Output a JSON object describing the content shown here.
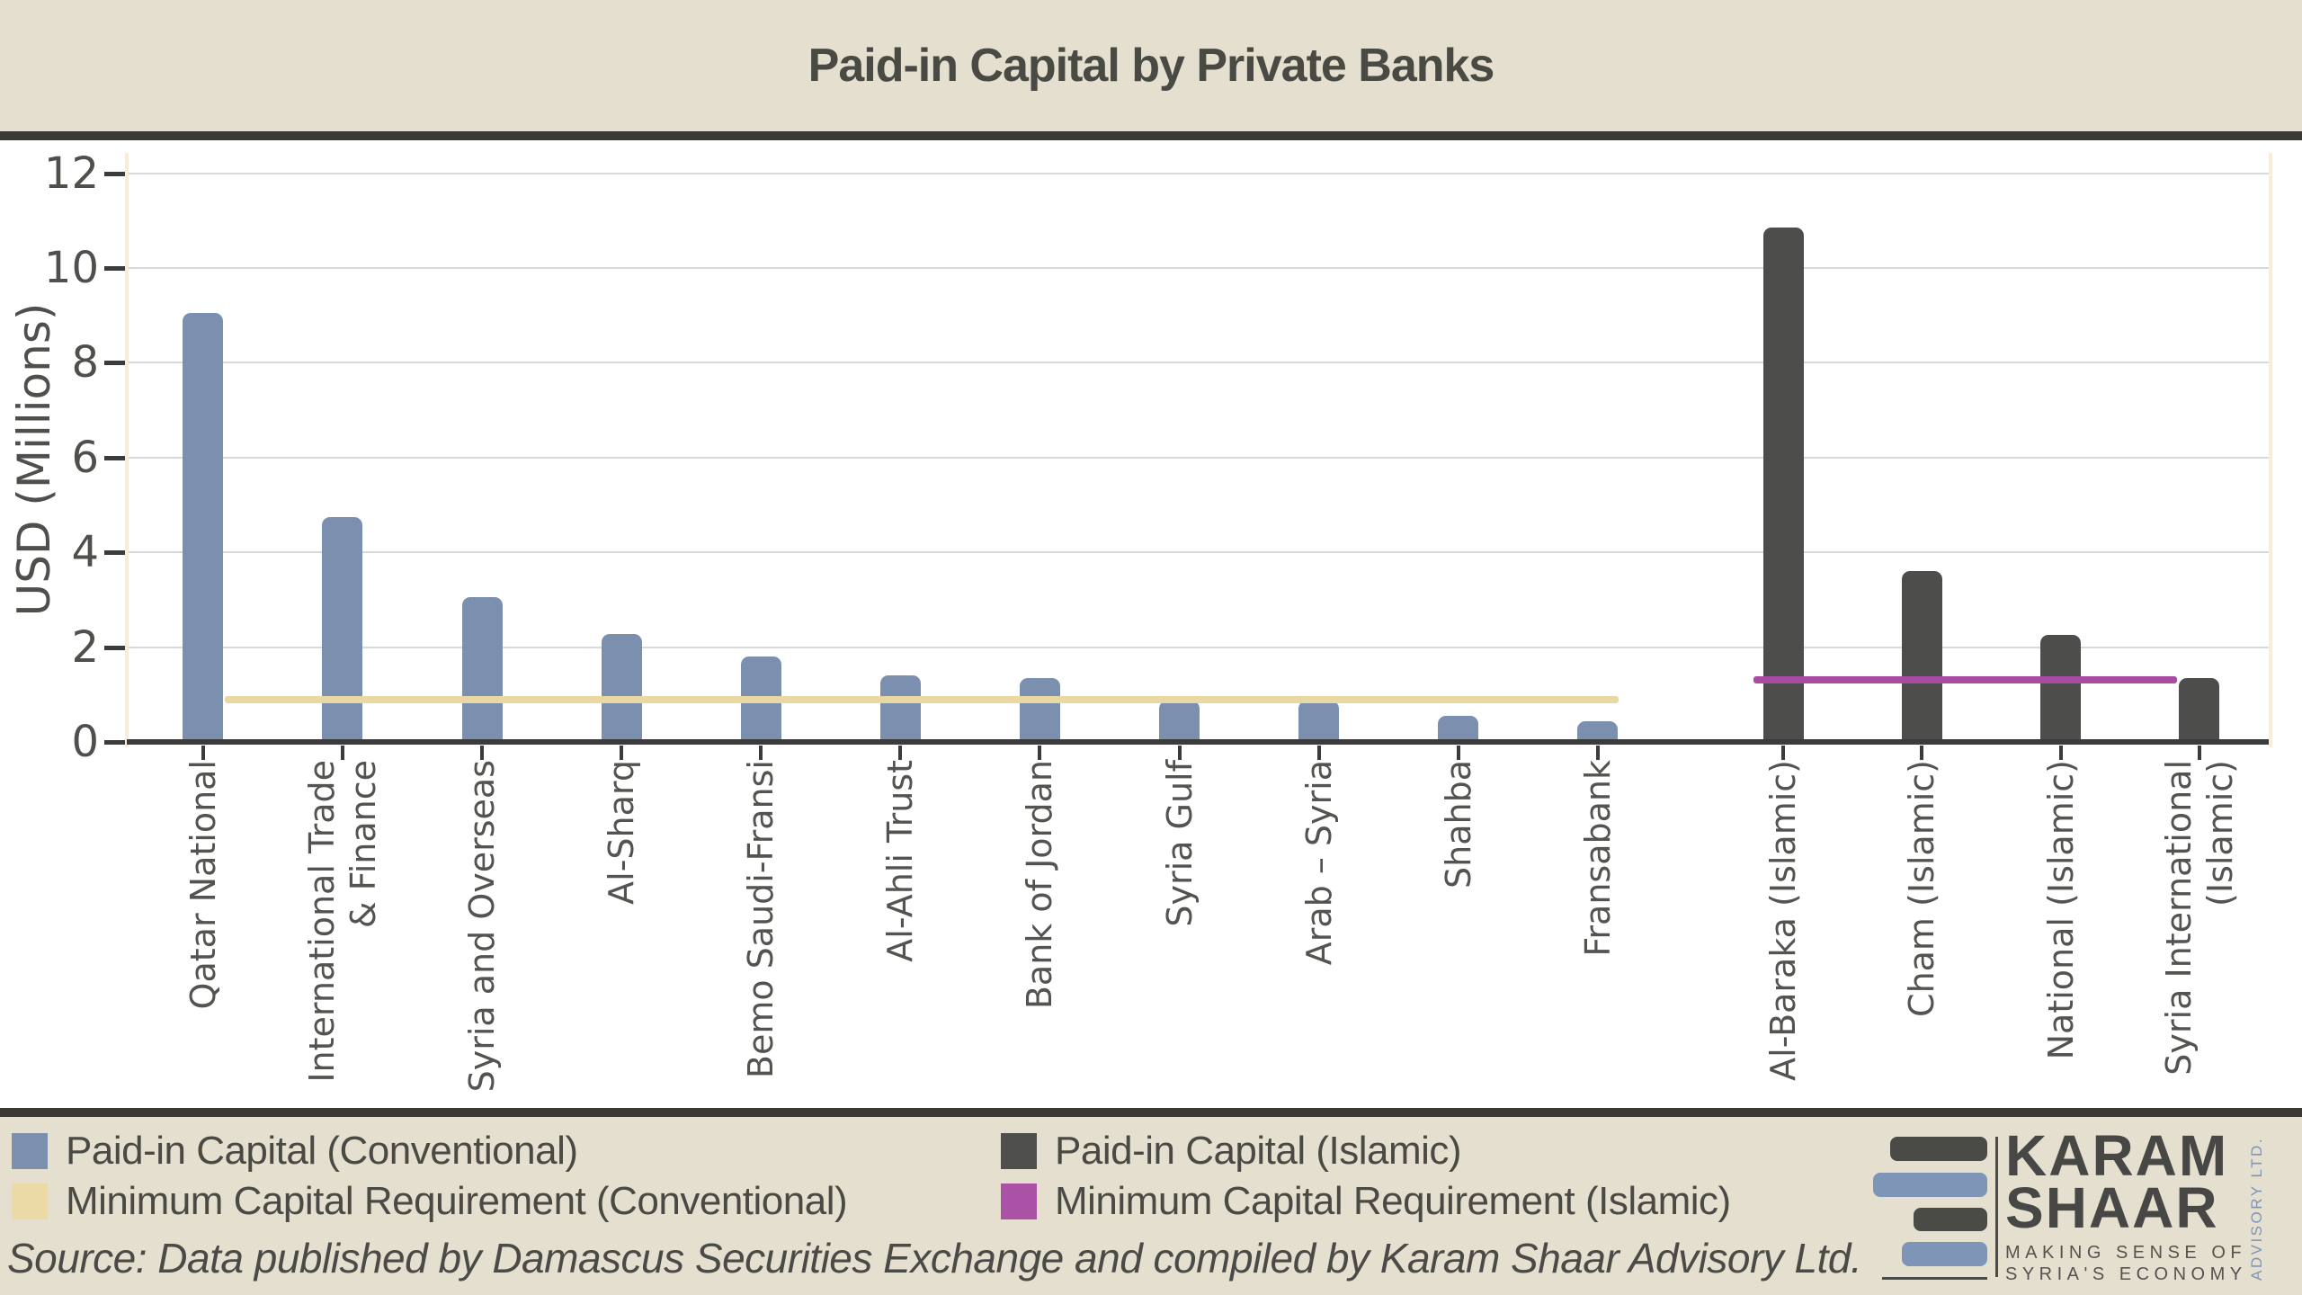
{
  "title": "Paid-in Capital by Private Banks",
  "chart_data": {
    "type": "bar",
    "title": "Paid-in Capital by Private Banks",
    "xlabel": "",
    "ylabel": "USD (Millions)",
    "ylim": [
      0,
      12
    ],
    "yticks": [
      "0",
      "2",
      "4",
      "6",
      "8",
      "10",
      "12"
    ],
    "grid": true,
    "legend_position": "bottom",
    "categories": [
      "Qatar National",
      "International Trade\n& Finance",
      "Syria and Overseas",
      "Al-Sharq",
      "Bemo Saudi-Fransi",
      "Al-Ahli Trust",
      "Bank of Jordan",
      "Syria Gulf",
      "Arab – Syria",
      "Shahba",
      "Fransabank",
      "Al-Baraka (Islamic)",
      "Cham (Islamic)",
      "National (Islamic)",
      "Syria International\n(Islamic)"
    ],
    "series": [
      {
        "name": "Paid-in Capital (Conventional)",
        "color": "#7b90af",
        "values": [
          9.05,
          4.75,
          3.05,
          2.27,
          1.8,
          1.4,
          1.34,
          0.87,
          0.87,
          0.55,
          0.43,
          null,
          null,
          null,
          null
        ]
      },
      {
        "name": "Paid-in Capital (Islamic)",
        "color": "#4d4d4b",
        "values": [
          null,
          null,
          null,
          null,
          null,
          null,
          null,
          null,
          null,
          null,
          null,
          10.85,
          3.6,
          2.26,
          1.34
        ]
      }
    ],
    "reference_lines": [
      {
        "name": "Minimum Capital Requirement (Conventional)",
        "color": "#e9d8a2",
        "value": 0.9,
        "span_categories": [
          0,
          10
        ]
      },
      {
        "name": "Minimum Capital Requirement (Islamic)",
        "color": "#a84ba3",
        "value": 1.3,
        "span_categories": [
          11,
          14
        ]
      }
    ]
  },
  "legend": {
    "items": [
      {
        "label": "Paid-in Capital (Conventional)",
        "color": "#7b90af"
      },
      {
        "label": "Minimum Capital Requirement (Conventional)",
        "color": "#ecdaa6"
      },
      {
        "label": "Paid-in Capital (Islamic)",
        "color": "#4f4f4d"
      },
      {
        "label": "Minimum Capital Requirement (Islamic)",
        "color": "#aa52a5"
      }
    ]
  },
  "source_note": "Source: Data published by Damascus Securities Exchange and compiled by Karam Shaar Advisory Ltd.",
  "logo": {
    "word1": "KARAM",
    "word2": "SHAAR",
    "tagline1": "MAKING SENSE OF",
    "tagline2": "SYRIA'S ECONOMY",
    "side_text": "ADVISORY LTD."
  },
  "colors": {
    "band_background": "#e4dfce",
    "band_border": "#3a3936",
    "plot_background": "#ffffff",
    "gridline": "#d9d9d7",
    "axis_spine": "#f6eed8",
    "axis_line": "#3b3b3b",
    "title_text": "#4a4a45",
    "tick_text": "#514f4b",
    "logo_blue": "#7e95b7",
    "logo_dark": "#4a4a47"
  }
}
